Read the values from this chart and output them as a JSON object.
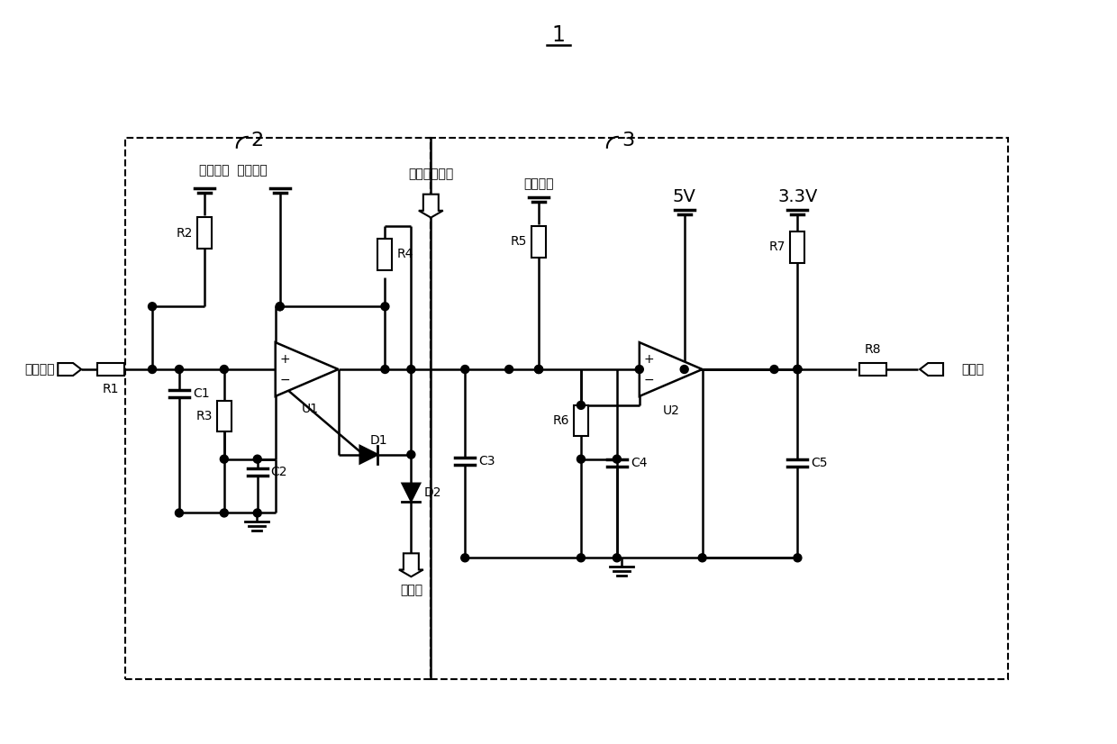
{
  "bg": "#ffffff",
  "lc": "#000000",
  "title": "1",
  "box2_num": "2",
  "box3_num": "3",
  "hw_label": "硬件驱动模块",
  "sampling_label": "采样电路",
  "proc_label": "处理器",
  "pwr1_label": "第一电源",
  "pwr2_label": "第二电源",
  "pwr3_label": "第三电源",
  "v5_label": "5V",
  "v33_label": "3.3V",
  "R1": "R1",
  "R2": "R2",
  "R3": "R3",
  "R4": "R4",
  "R5": "R5",
  "R6": "R6",
  "R7": "R7",
  "R8": "R8",
  "C1": "C1",
  "C2": "C2",
  "C3": "C3",
  "C4": "C4",
  "C5": "C5",
  "D1": "D1",
  "D2": "D2",
  "U1": "U1",
  "U2": "U2"
}
